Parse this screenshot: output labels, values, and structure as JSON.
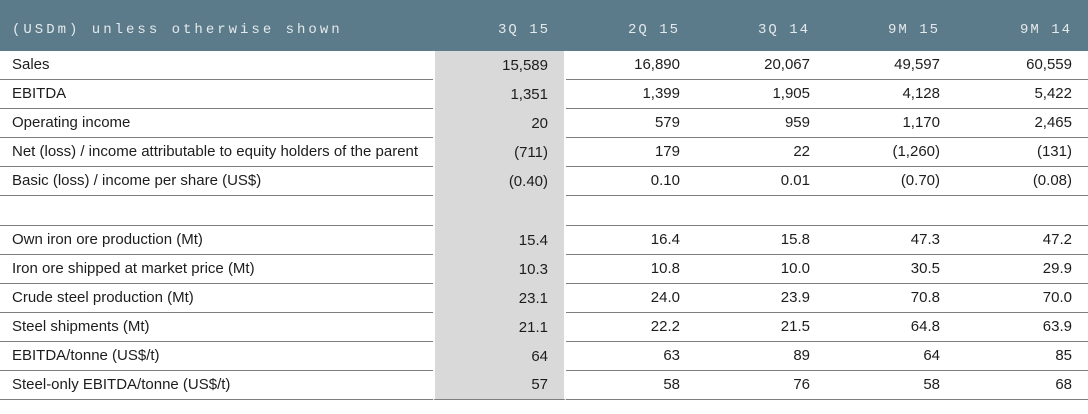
{
  "table": {
    "header": {
      "label": "(USDm) unless otherwise shown",
      "columns": [
        "3Q 15",
        "2Q 15",
        "3Q 14",
        "9M 15",
        "9M 14"
      ]
    },
    "rows": [
      {
        "label": "Sales",
        "values": [
          "15,589",
          "16,890",
          "20,067",
          "49,597",
          "60,559"
        ]
      },
      {
        "label": "EBITDA",
        "values": [
          "1,351",
          "1,399",
          "1,905",
          "4,128",
          "5,422"
        ]
      },
      {
        "label": "Operating income",
        "values": [
          "20",
          "579",
          "959",
          "1,170",
          "2,465"
        ]
      },
      {
        "label": "Net (loss) / income attributable to equity holders of the parent",
        "values": [
          "(711)",
          "179",
          "22",
          "(1,260)",
          "(131)"
        ]
      },
      {
        "label": "Basic (loss) / income per share (US$)",
        "values": [
          "(0.40)",
          "0.10",
          "0.01",
          "(0.70)",
          "(0.08)"
        ]
      },
      {
        "label": "",
        "values": [
          "",
          "",
          "",
          "",
          ""
        ],
        "spacer": true
      },
      {
        "label": "Own iron ore production (Mt)",
        "values": [
          "15.4",
          "16.4",
          "15.8",
          "47.3",
          "47.2"
        ]
      },
      {
        "label": "Iron ore shipped at market price (Mt)",
        "values": [
          "10.3",
          "10.8",
          "10.0",
          "30.5",
          "29.9"
        ]
      },
      {
        "label": "Crude steel production (Mt)",
        "values": [
          "23.1",
          "24.0",
          "23.9",
          "70.8",
          "70.0"
        ]
      },
      {
        "label": "Steel shipments (Mt)",
        "values": [
          "21.1",
          "22.2",
          "21.5",
          "64.8",
          "63.9"
        ]
      },
      {
        "label": "EBITDA/tonne (US$/t)",
        "values": [
          "64",
          "63",
          "89",
          "64",
          "85"
        ]
      },
      {
        "label": "Steel-only EBITDA/tonne (US$/t)",
        "values": [
          "57",
          "58",
          "76",
          "58",
          "68"
        ]
      }
    ],
    "colors": {
      "header_bg": "#5c7b8a",
      "header_text": "#e4e9eb",
      "highlight_column_bg": "#d9d9d9",
      "row_line": "#7e7e7e",
      "body_text": "#1d1d1d"
    }
  }
}
